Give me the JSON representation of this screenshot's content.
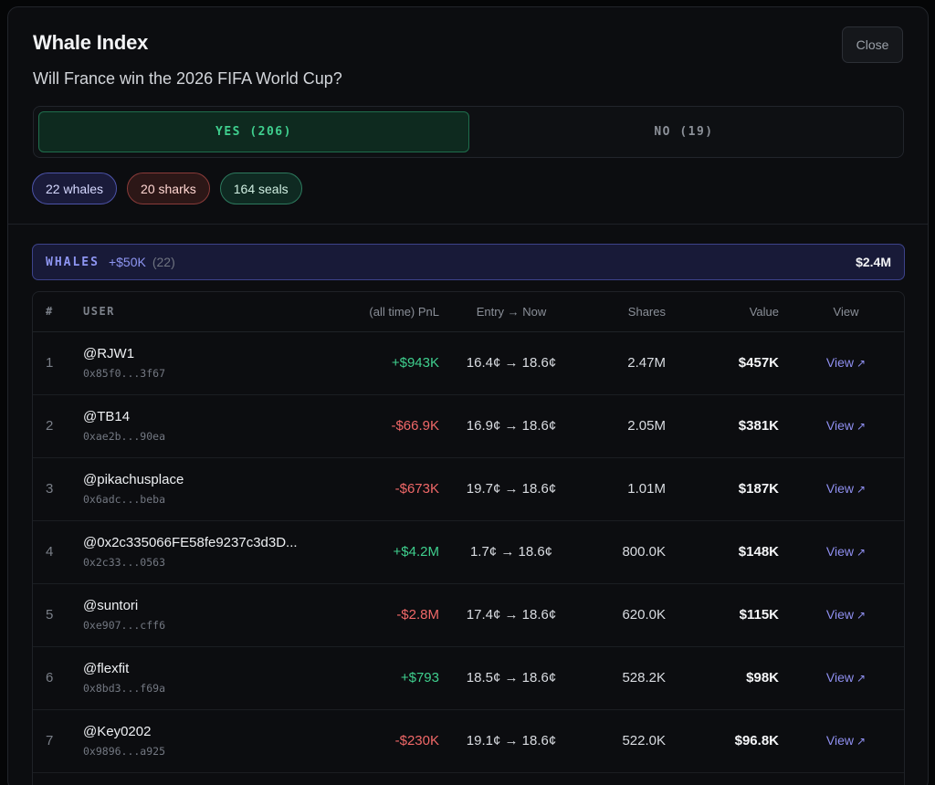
{
  "modal": {
    "title": "Whale Index",
    "question": "Will France win the 2026 FIFA World Cup?",
    "close_label": "Close"
  },
  "toggle": {
    "yes_label": "YES (206)",
    "no_label": "NO (19)",
    "active": "yes"
  },
  "pills": {
    "whales": "22 whales",
    "sharks": "20 sharks",
    "seals": "164 seals"
  },
  "group": {
    "name": "WHALES",
    "range": "+$50K",
    "count": "(22)",
    "total": "$2.4M"
  },
  "table": {
    "headers": {
      "rank": "#",
      "user": "USER",
      "pnl": "(all time) PnL",
      "entry": "Entry → Now",
      "shares": "Shares",
      "value": "Value",
      "view": "View"
    },
    "rows": [
      {
        "rank": "1",
        "user": "@RJW1",
        "address": "0x85f0...3f67",
        "pnl": "+$943K",
        "pnl_sign": "pos",
        "entry": "16.4¢ → 18.6¢",
        "shares": "2.47M",
        "value": "$457K",
        "view": "View"
      },
      {
        "rank": "2",
        "user": "@TB14",
        "address": "0xae2b...90ea",
        "pnl": "-$66.9K",
        "pnl_sign": "neg",
        "entry": "16.9¢ → 18.6¢",
        "shares": "2.05M",
        "value": "$381K",
        "view": "View"
      },
      {
        "rank": "3",
        "user": "@pikachusplace",
        "address": "0x6adc...beba",
        "pnl": "-$673K",
        "pnl_sign": "neg",
        "entry": "19.7¢ → 18.6¢",
        "shares": "1.01M",
        "value": "$187K",
        "view": "View"
      },
      {
        "rank": "4",
        "user": "@0x2c335066FE58fe9237c3d3D...",
        "address": "0x2c33...0563",
        "pnl": "+$4.2M",
        "pnl_sign": "pos",
        "entry": "1.7¢ → 18.6¢",
        "shares": "800.0K",
        "value": "$148K",
        "view": "View"
      },
      {
        "rank": "5",
        "user": "@suntori",
        "address": "0xe907...cff6",
        "pnl": "-$2.8M",
        "pnl_sign": "neg",
        "entry": "17.4¢ → 18.6¢",
        "shares": "620.0K",
        "value": "$115K",
        "view": "View"
      },
      {
        "rank": "6",
        "user": "@flexfit",
        "address": "0x8bd3...f69a",
        "pnl": "+$793",
        "pnl_sign": "pos",
        "entry": "18.5¢ → 18.6¢",
        "shares": "528.2K",
        "value": "$98K",
        "view": "View"
      },
      {
        "rank": "7",
        "user": "@Key0202",
        "address": "0x9896...a925",
        "pnl": "-$230K",
        "pnl_sign": "neg",
        "entry": "19.1¢ → 18.6¢",
        "shares": "522.0K",
        "value": "$96.8K",
        "view": "View"
      }
    ]
  },
  "colors": {
    "positive": "#3fcf8e",
    "negative": "#f06868",
    "accent": "#8e96f2"
  }
}
